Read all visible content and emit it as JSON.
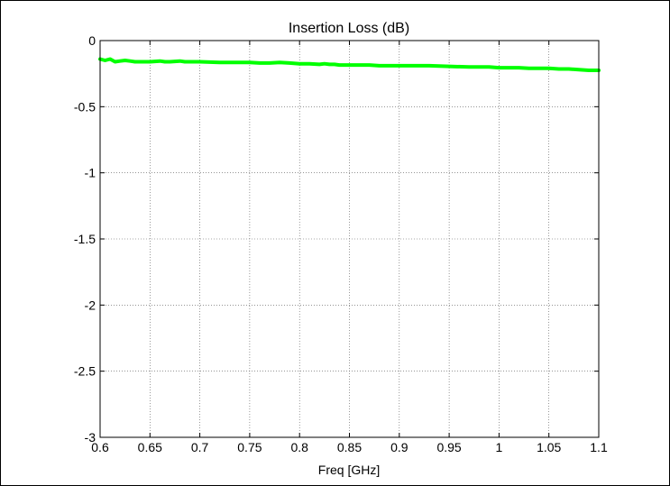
{
  "chart_data": {
    "type": "line",
    "title": "Insertion Loss (dB)",
    "xlabel": "Freq [GHz]",
    "ylabel": "",
    "xlim": [
      0.6,
      1.1
    ],
    "ylim": [
      -3,
      0
    ],
    "x_ticks": [
      0.6,
      0.65,
      0.7,
      0.75,
      0.8,
      0.85,
      0.9,
      0.95,
      1,
      1.05,
      1.1
    ],
    "x_tick_labels": [
      "0.6",
      "0.65",
      "0.7",
      "0.75",
      "0.8",
      "0.85",
      "0.9",
      "0.95",
      "1",
      "1.05",
      "1.1"
    ],
    "y_ticks": [
      0,
      -0.5,
      -1,
      -1.5,
      -2,
      -2.5,
      -3
    ],
    "y_tick_labels": [
      "0",
      "-0.5",
      "-1",
      "-1.5",
      "-2",
      "-2.5",
      "-3"
    ],
    "grid": true,
    "series": [
      {
        "color": "#00ff00",
        "x": [
          0.6,
          0.605,
          0.61,
          0.615,
          0.62,
          0.625,
          0.63,
          0.635,
          0.64,
          0.65,
          0.66,
          0.665,
          0.67,
          0.68,
          0.685,
          0.69,
          0.7,
          0.72,
          0.74,
          0.75,
          0.76,
          0.77,
          0.78,
          0.79,
          0.8,
          0.81,
          0.82,
          0.825,
          0.83,
          0.835,
          0.84,
          0.85,
          0.87,
          0.88,
          0.9,
          0.93,
          0.95,
          0.97,
          0.99,
          1.0,
          1.02,
          1.03,
          1.04,
          1.05,
          1.06,
          1.07,
          1.08,
          1.09,
          1.1
        ],
        "y": [
          -0.14,
          -0.15,
          -0.14,
          -0.16,
          -0.155,
          -0.15,
          -0.155,
          -0.16,
          -0.16,
          -0.16,
          -0.155,
          -0.16,
          -0.16,
          -0.155,
          -0.16,
          -0.16,
          -0.16,
          -0.165,
          -0.165,
          -0.165,
          -0.17,
          -0.17,
          -0.165,
          -0.17,
          -0.175,
          -0.175,
          -0.18,
          -0.175,
          -0.18,
          -0.18,
          -0.185,
          -0.185,
          -0.185,
          -0.19,
          -0.19,
          -0.19,
          -0.195,
          -0.2,
          -0.2,
          -0.205,
          -0.205,
          -0.21,
          -0.21,
          -0.21,
          -0.215,
          -0.215,
          -0.22,
          -0.225,
          -0.225
        ]
      }
    ]
  }
}
